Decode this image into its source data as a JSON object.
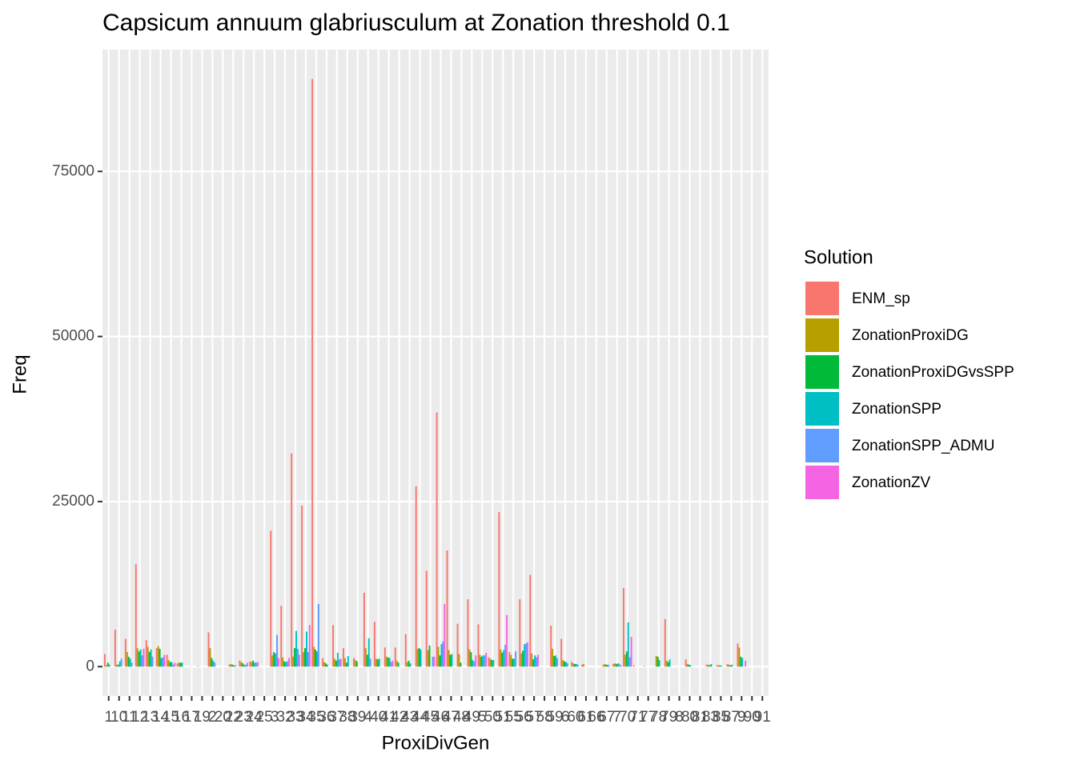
{
  "chart_data": {
    "type": "bar",
    "title": "Capsicum annuum glabriusculum at Zonation threshold 0.1",
    "x_label": "ProxiDivGen",
    "y_label": "Freq",
    "legend_title": "Solution",
    "categories": [
      "1",
      "10",
      "11",
      "12",
      "13",
      "14",
      "15",
      "16",
      "17",
      "19",
      "2",
      "20",
      "22",
      "23",
      "24",
      "25",
      "3",
      "32",
      "33",
      "34",
      "35",
      "36",
      "37",
      "38",
      "39",
      "4",
      "40",
      "41",
      "42",
      "43",
      "44",
      "45",
      "46",
      "47",
      "48",
      "49",
      "5",
      "50",
      "51",
      "55",
      "56",
      "57",
      "58",
      "59",
      "6",
      "60",
      "61",
      "66",
      "67",
      "7",
      "70",
      "71",
      "77",
      "78",
      "79",
      "8",
      "80",
      "81",
      "83",
      "85",
      "87",
      "9",
      "90",
      "91"
    ],
    "series": [
      {
        "name": "ENM_sp",
        "color": "#f8766d",
        "values": [
          1900,
          5600,
          4200,
          15500,
          4000,
          2800,
          1800,
          500,
          0,
          100,
          5200,
          0,
          300,
          900,
          800,
          0,
          20600,
          9200,
          32300,
          24400,
          89000,
          1300,
          6300,
          2800,
          1300,
          11200,
          6800,
          2900,
          2900,
          4900,
          27300,
          14500,
          38500,
          17600,
          6500,
          10200,
          6400,
          1400,
          23400,
          2200,
          10200,
          13900,
          0,
          6200,
          4200,
          700,
          300,
          0,
          200,
          400,
          11900,
          200,
          100,
          0,
          7200,
          0,
          1100,
          0,
          300,
          200,
          400,
          3500,
          0,
          0
        ]
      },
      {
        "name": "ZonationProxiDG",
        "color": "#b79f00",
        "values": [
          200,
          300,
          2200,
          2800,
          3000,
          3100,
          1000,
          600,
          0,
          0,
          2800,
          0,
          400,
          700,
          700,
          0,
          1700,
          1400,
          1500,
          2200,
          3000,
          700,
          1200,
          1300,
          1000,
          2800,
          1200,
          1500,
          900,
          700,
          2700,
          2500,
          3000,
          2500,
          1900,
          2600,
          1800,
          1200,
          2600,
          1800,
          2000,
          2000,
          0,
          2700,
          1000,
          500,
          400,
          0,
          400,
          500,
          1800,
          0,
          0,
          1600,
          900,
          0,
          400,
          0,
          300,
          200,
          300,
          2900,
          0,
          0
        ]
      },
      {
        "name": "ZonationProxiDGvsSPP",
        "color": "#00ba38",
        "values": [
          600,
          300,
          1500,
          2300,
          2200,
          2700,
          700,
          600,
          0,
          0,
          1300,
          0,
          300,
          500,
          900,
          0,
          2200,
          800,
          2800,
          2800,
          2600,
          500,
          900,
          600,
          800,
          1800,
          1100,
          1400,
          600,
          900,
          2800,
          3200,
          1700,
          1800,
          600,
          2200,
          1500,
          1000,
          2100,
          1200,
          2400,
          1100,
          0,
          1600,
          800,
          400,
          0,
          0,
          300,
          400,
          2300,
          0,
          0,
          1500,
          700,
          0,
          300,
          0,
          200,
          200,
          200,
          1500,
          0,
          0
        ]
      },
      {
        "name": "ZonationSPP",
        "color": "#00bfc4",
        "values": [
          300,
          800,
          1200,
          2600,
          2600,
          1300,
          700,
          600,
          0,
          0,
          900,
          0,
          200,
          300,
          600,
          0,
          2000,
          700,
          5400,
          5300,
          2300,
          300,
          2100,
          1600,
          0,
          4300,
          1200,
          1300,
          0,
          500,
          2600,
          0,
          3400,
          1900,
          0,
          1000,
          1700,
          1000,
          2500,
          1200,
          3400,
          1700,
          0,
          1700,
          700,
          400,
          0,
          0,
          300,
          500,
          6700,
          0,
          0,
          1000,
          1100,
          0,
          200,
          0,
          400,
          100,
          300,
          1300,
          0,
          0
        ]
      },
      {
        "name": "ZonationSPP_ADMU",
        "color": "#619cff",
        "values": [
          0,
          1200,
          600,
          1700,
          1500,
          1400,
          300,
          0,
          0,
          0,
          600,
          0,
          200,
          300,
          600,
          0,
          4800,
          800,
          2700,
          2200,
          9500,
          0,
          1100,
          0,
          0,
          1200,
          0,
          700,
          0,
          0,
          0,
          1500,
          3800,
          0,
          0,
          800,
          1700,
          0,
          3300,
          2300,
          3500,
          1400,
          0,
          1300,
          500,
          300,
          0,
          0,
          200,
          400,
          1400,
          0,
          0,
          0,
          0,
          0,
          0,
          0,
          0,
          0,
          0,
          0,
          0,
          0
        ]
      },
      {
        "name": "ZonationZV",
        "color": "#f564e3",
        "values": [
          0,
          0,
          0,
          2700,
          0,
          1800,
          600,
          0,
          0,
          0,
          0,
          0,
          0,
          600,
          700,
          0,
          1300,
          1300,
          1800,
          6300,
          0,
          0,
          1200,
          0,
          0,
          0,
          0,
          900,
          0,
          0,
          0,
          1500,
          9500,
          0,
          0,
          1700,
          2100,
          0,
          7800,
          0,
          3700,
          1800,
          0,
          0,
          0,
          0,
          0,
          0,
          0,
          200,
          4500,
          0,
          0,
          0,
          0,
          0,
          0,
          0,
          0,
          0,
          0,
          900,
          0,
          0
        ]
      }
    ],
    "ylim": [
      -4450,
      93450
    ],
    "yticks": [
      0,
      25000,
      50000,
      75000
    ],
    "grid": true,
    "legend": "right"
  }
}
